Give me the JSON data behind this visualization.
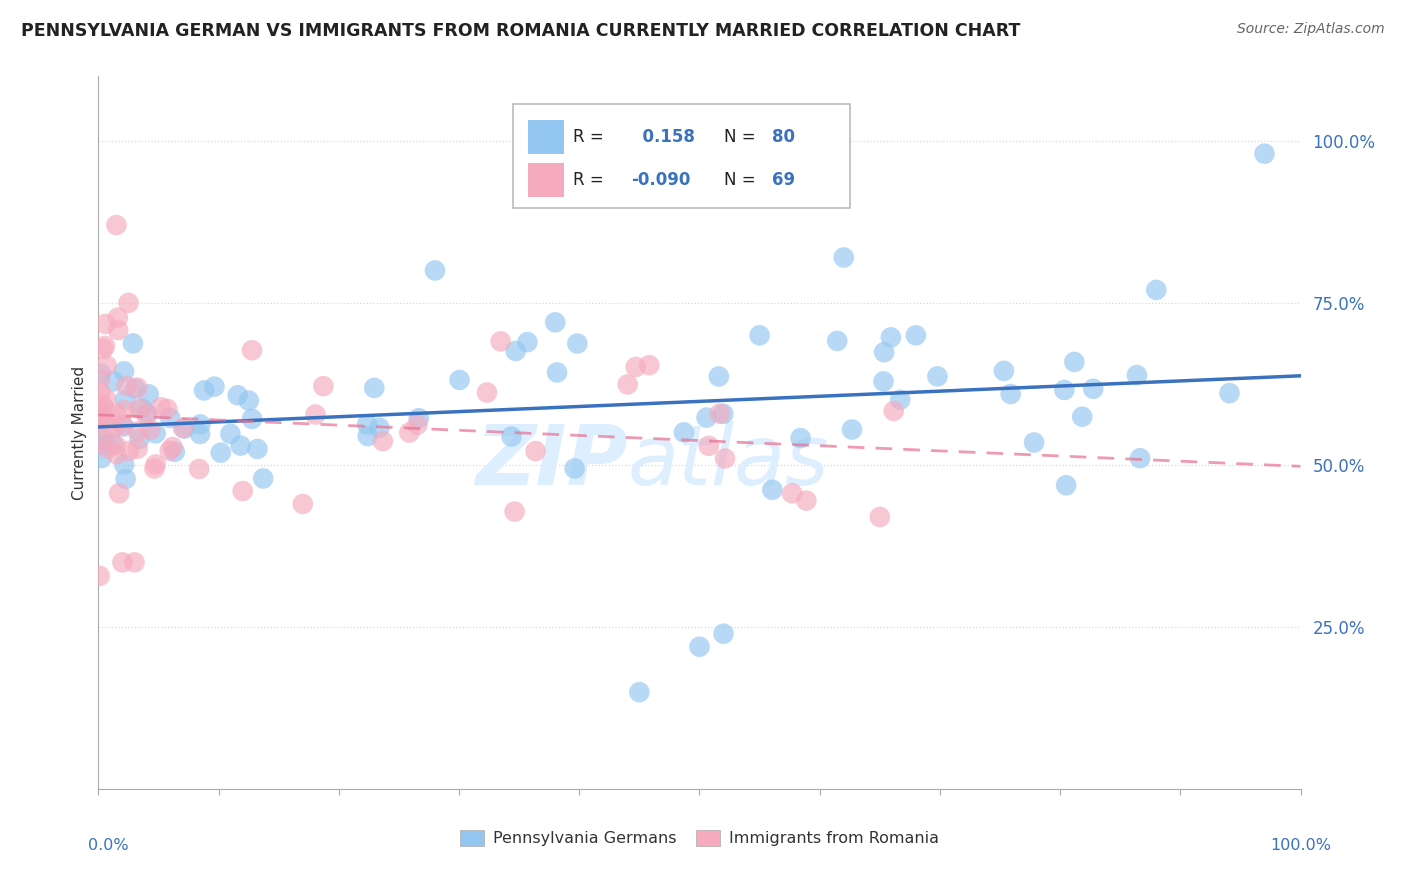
{
  "title": "PENNSYLVANIA GERMAN VS IMMIGRANTS FROM ROMANIA CURRENTLY MARRIED CORRELATION CHART",
  "source": "Source: ZipAtlas.com",
  "ylabel": "Currently Married",
  "r1": 0.158,
  "n1": 80,
  "r2": -0.09,
  "n2": 69,
  "blue_color": "#93C6F0",
  "pink_color": "#F5AABE",
  "blue_line_color": "#3B72C0",
  "pink_line_color": "#E87090",
  "legend_label1": "Pennsylvania Germans",
  "legend_label2": "Immigrants from Romania",
  "ytick_color": "#3B72C0",
  "xtick_color": "#3B72C0",
  "grid_color": "#D8D8D8",
  "title_color": "#222222",
  "source_color": "#666666",
  "ylabel_color": "#333333",
  "watermark_color": "#DDEEFF"
}
